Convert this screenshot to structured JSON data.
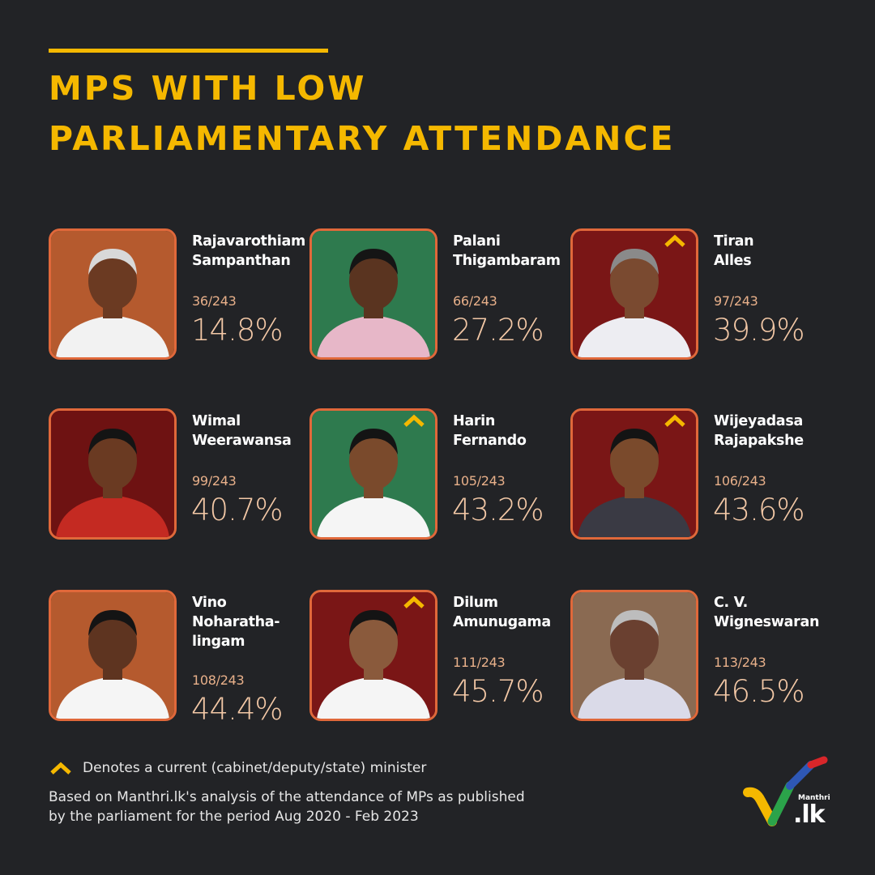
{
  "title": {
    "line1": "MPS WITH LOW",
    "line2": "PARLIAMENTARY ATTENDANCE"
  },
  "colors": {
    "background": "#222326",
    "accent": "#F5B800",
    "border": "#E0683A",
    "count": "#E8B08A",
    "percent": "#F3C8A6"
  },
  "mps": [
    {
      "name_line1": "Rajavarothiam",
      "name_line2": "Sampanthan",
      "name_line3": "",
      "count": "36/243",
      "percent": "14.8%",
      "minister": false,
      "bg": "#B55A2E",
      "skin": "#6B3A22",
      "shirt": "#F2F2F2",
      "hair": "#D8D8D8"
    },
    {
      "name_line1": "Palani",
      "name_line2": "Thigambaram",
      "name_line3": "",
      "count": "66/243",
      "percent": "27.2%",
      "minister": false,
      "bg": "#2E7A4E",
      "skin": "#5A3420",
      "shirt": "#E7B7C8",
      "hair": "#151515"
    },
    {
      "name_line1": "Tiran",
      "name_line2": "Alles",
      "name_line3": "",
      "count": "97/243",
      "percent": "39.9%",
      "minister": true,
      "bg": "#7A1616",
      "skin": "#7A4A30",
      "shirt": "#EDEDF2",
      "hair": "#8A8A8A"
    },
    {
      "name_line1": "Wimal",
      "name_line2": "Weerawansa",
      "name_line3": "",
      "count": "99/243",
      "percent": "40.7%",
      "minister": false,
      "bg": "#6E1212",
      "skin": "#6A3A22",
      "shirt": "#C42A22",
      "hair": "#141414"
    },
    {
      "name_line1": "Harin",
      "name_line2": "Fernando",
      "name_line3": "",
      "count": "105/243",
      "percent": "43.2%",
      "minister": true,
      "bg": "#2E7A4E",
      "skin": "#7A4A2C",
      "shirt": "#F5F5F5",
      "hair": "#141414"
    },
    {
      "name_line1": "Wijeyadasa",
      "name_line2": "Rajapakshe",
      "name_line3": "",
      "count": "106/243",
      "percent": "43.6%",
      "minister": true,
      "bg": "#7A1616",
      "skin": "#7A4A2C",
      "shirt": "#3A3A44",
      "hair": "#141414"
    },
    {
      "name_line1": "Vino",
      "name_line2": "Noharatha-",
      "name_line3": "lingam",
      "count": "108/243",
      "percent": "44.4%",
      "minister": false,
      "bg": "#B55A2E",
      "skin": "#5E3420",
      "shirt": "#F5F5F5",
      "hair": "#141414"
    },
    {
      "name_line1": "Dilum",
      "name_line2": "Amunugama",
      "name_line3": "",
      "count": "111/243",
      "percent": "45.7%",
      "minister": true,
      "bg": "#7A1616",
      "skin": "#8A5A3C",
      "shirt": "#F5F5F5",
      "hair": "#141414"
    },
    {
      "name_line1": "C. V.",
      "name_line2": "Wigneswaran",
      "name_line3": "",
      "count": "113/243",
      "percent": "46.5%",
      "minister": false,
      "bg": "#8A6A52",
      "skin": "#6A4030",
      "shirt": "#DADAE8",
      "hair": "#BDBDBD"
    }
  ],
  "legend": {
    "icon": "chevron-up-icon",
    "text": "Denotes a current (cabinet/deputy/state) minister"
  },
  "note": {
    "line1": "Based on Manthri.lk's analysis of the attendance of MPs as published",
    "line2": "by the parliament for the period Aug 2020 - Feb 2023"
  },
  "logo": {
    "small": "Manthri",
    "big": ".lk"
  }
}
